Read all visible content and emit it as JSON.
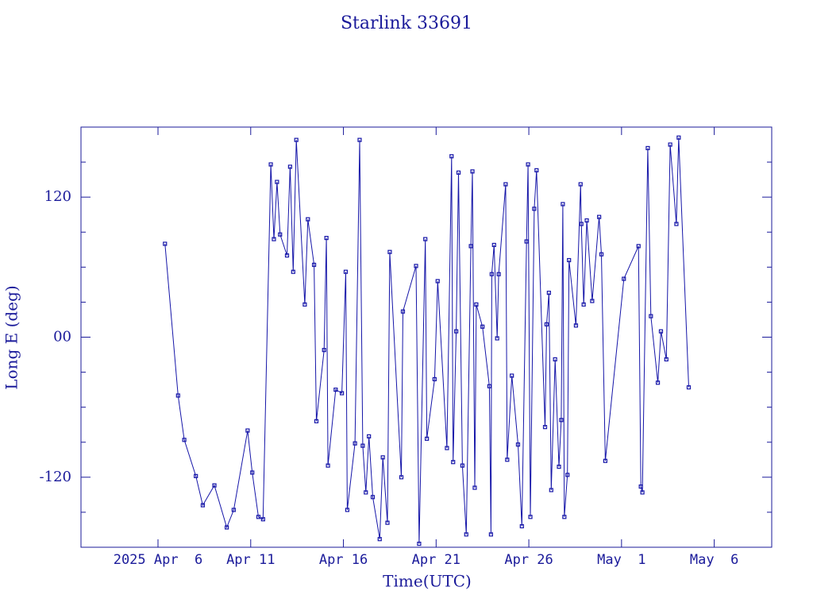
{
  "chart_data": {
    "type": "line",
    "title": "Starlink 33691",
    "xlabel": "Time(UTC)",
    "ylabel": "Long E (deg)",
    "color": "#1515a8",
    "xlim": [
      "2025-04-01T20:18",
      "2025-05-09T02:24"
    ],
    "xticks": [
      {
        "value": "2025-04-06",
        "label": "2025 Apr  6"
      },
      {
        "value": "2025-04-11",
        "label": "Apr 11"
      },
      {
        "value": "2025-04-16",
        "label": "Apr 16"
      },
      {
        "value": "2025-04-21",
        "label": "Apr 21"
      },
      {
        "value": "2025-04-26",
        "label": "Apr 26"
      },
      {
        "value": "2025-05-01",
        "label": "May  1"
      },
      {
        "value": "2025-05-06",
        "label": "May  6"
      }
    ],
    "ylim": [
      -180,
      180
    ],
    "yticks": [
      -120,
      {
        "value": 0,
        "label": "00"
      },
      120
    ],
    "yminor_ticks": [
      -150,
      -90,
      -60,
      -30,
      30,
      60,
      90,
      150
    ],
    "series": [
      {
        "name": "Long E",
        "color": "#1515a8",
        "x": [
          "2025-04-06T09:00",
          "2025-04-07T02:00",
          "2025-04-07T10:00",
          "2025-04-08T01:00",
          "2025-04-08T10:00",
          "2025-04-09T01:00",
          "2025-04-09T17:00",
          "2025-04-10T02:00",
          "2025-04-10T20:00",
          "2025-04-11T02:00",
          "2025-04-11T10:00",
          "2025-04-11T16:00",
          "2025-04-12T02:00",
          "2025-04-12T06:00",
          "2025-04-12T10:00",
          "2025-04-12T14:00",
          "2025-04-12T23:00",
          "2025-04-13T03:00",
          "2025-04-13T07:00",
          "2025-04-13T11:00",
          "2025-04-13T22:00",
          "2025-04-14T02:00",
          "2025-04-14T10:00",
          "2025-04-14T13:00",
          "2025-04-14T23:00",
          "2025-04-15T02:00",
          "2025-04-15T04:00",
          "2025-04-15T14:00",
          "2025-04-15T22:00",
          "2025-04-16T03:00",
          "2025-04-16T05:00",
          "2025-04-16T15:00",
          "2025-04-16T21:00",
          "2025-04-17T01:00",
          "2025-04-17T05:00",
          "2025-04-17T09:00",
          "2025-04-17T14:00",
          "2025-04-17T23:00",
          "2025-04-18T03:00",
          "2025-04-18T09:00",
          "2025-04-18T12:00",
          "2025-04-19T03:00",
          "2025-04-19T05:00",
          "2025-04-19T22:00",
          "2025-04-20T02:00",
          "2025-04-20T10:00",
          "2025-04-20T12:00",
          "2025-04-20T22:00",
          "2025-04-21T02:00",
          "2025-04-21T14:00",
          "2025-04-21T20:00",
          "2025-04-21T22:00",
          "2025-04-22T02:00",
          "2025-04-22T05:00",
          "2025-04-22T10:00",
          "2025-04-22T15:00",
          "2025-04-22T21:00",
          "2025-04-22T23:00",
          "2025-04-23T02:00",
          "2025-04-23T04:00",
          "2025-04-23T12:00",
          "2025-04-23T21:00",
          "2025-04-23T23:00",
          "2025-04-24T00:00",
          "2025-04-24T03:00",
          "2025-04-24T07:00",
          "2025-04-24T09:00",
          "2025-04-24T18:00",
          "2025-04-24T20:00",
          "2025-04-25T02:00",
          "2025-04-25T10:00",
          "2025-04-25T15:00",
          "2025-04-25T21:00",
          "2025-04-25T23:00",
          "2025-04-26T02:00",
          "2025-04-26T07:00",
          "2025-04-26T10:00",
          "2025-04-26T21:00",
          "2025-04-26T23:00",
          "2025-04-27T02:00",
          "2025-04-27T05:00",
          "2025-04-27T10:00",
          "2025-04-27T15:00",
          "2025-04-27T18:00",
          "2025-04-27T20:00",
          "2025-04-27T22:00",
          "2025-04-28T02:00",
          "2025-04-28T04:00",
          "2025-04-28T13:00",
          "2025-04-28T19:00",
          "2025-04-28T20:00",
          "2025-04-28T23:00",
          "2025-04-29T03:00",
          "2025-04-29T10:00",
          "2025-04-29T19:00",
          "2025-04-29T22:00",
          "2025-04-30T03:00",
          "2025-05-01T03:00",
          "2025-05-01T22:00",
          "2025-05-02T01:00",
          "2025-05-02T03:00",
          "2025-05-02T10:00",
          "2025-05-02T14:00",
          "2025-05-02T23:00",
          "2025-05-03T03:00",
          "2025-05-03T10:00",
          "2025-05-03T15:00",
          "2025-05-03T23:00",
          "2025-05-04T02:00",
          "2025-05-04T15:00"
        ],
        "values": [
          80,
          -50,
          -88,
          -119,
          -144,
          -127,
          -163,
          -148,
          -80,
          -116,
          -154,
          -156,
          148,
          84,
          133,
          88,
          70,
          146,
          56,
          169,
          28,
          101,
          62,
          -72,
          -11,
          85,
          -110,
          -45,
          -48,
          56,
          -148,
          -91,
          169,
          -93,
          -133,
          -85,
          -137,
          -173,
          -103,
          -159,
          73,
          -120,
          22,
          61,
          -177,
          84,
          -87,
          -36,
          48,
          -95,
          155,
          -107,
          5,
          141,
          -110,
          -169,
          78,
          142,
          -129,
          28,
          9,
          -42,
          -169,
          54,
          79,
          -1,
          54,
          131,
          -105,
          -33,
          -92,
          -162,
          82,
          148,
          -154,
          110,
          143,
          -77,
          11,
          38,
          -131,
          -19,
          -111,
          -71,
          114,
          -154,
          -118,
          66,
          10,
          131,
          97,
          28,
          100,
          31,
          103,
          71,
          -106,
          50,
          78,
          -128,
          -133,
          162,
          18,
          -39,
          5,
          -19,
          165,
          97,
          171,
          -43
        ]
      }
    ]
  }
}
